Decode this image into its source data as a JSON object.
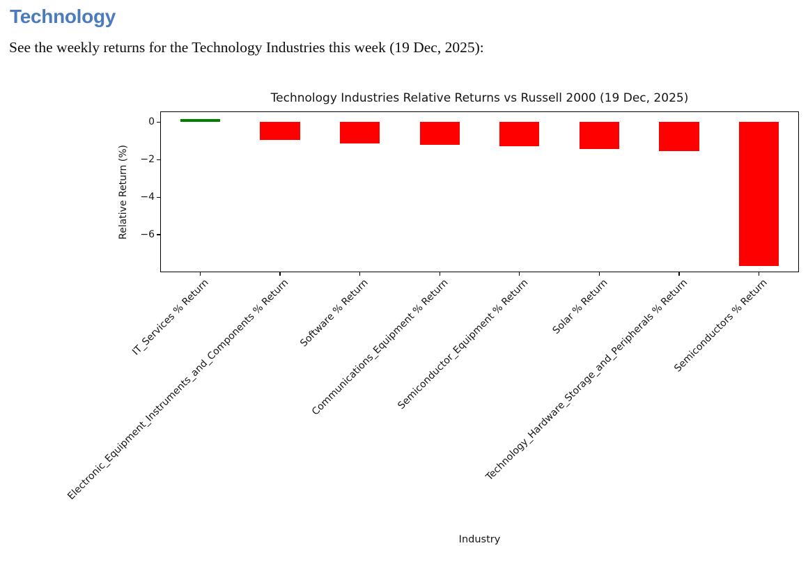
{
  "page": {
    "heading": "Technology",
    "heading_color": "#4a7cbd",
    "intro": "See the weekly returns for the Technology Industries this week (19 Dec, 2025):"
  },
  "chart_data": {
    "type": "bar",
    "title": "Technology Industries Relative Returns vs Russell 2000 (19 Dec, 2025)",
    "xlabel": "Industry",
    "ylabel": "Relative Return (%)",
    "categories": [
      "IT_Services % Return",
      "Electronic_Equipment_Instruments_and_Components % Return",
      "Software % Return",
      "Communications_Equipment % Return",
      "Semiconductor_Equipment % Return",
      "Solar % Return",
      "Technology_Hardware_Storage_and_Peripherals % Return",
      "Semiconductors % Return"
    ],
    "values": [
      0.15,
      -0.95,
      -1.15,
      -1.2,
      -1.3,
      -1.45,
      -1.55,
      -7.65
    ],
    "bar_colors": {
      "positive": "#008000",
      "negative": "#ff0000"
    },
    "yticks": [
      0,
      -2,
      -4,
      -6
    ],
    "ytick_labels": [
      "0",
      "−2",
      "−4",
      "−6"
    ],
    "ylim": [
      -8.0,
      0.57
    ],
    "grid": false,
    "legend": null,
    "tick_label_rotation_deg": 45,
    "bar_width_frac": 0.5
  }
}
